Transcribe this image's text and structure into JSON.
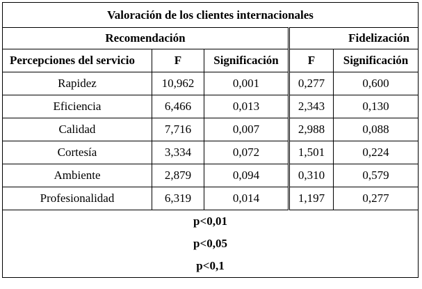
{
  "table": {
    "title": "Valoración de los clientes internacionales",
    "groups": {
      "recomendacion": "Recomendación",
      "fidelizacion": "Fidelización"
    },
    "headers": [
      "Percepciones del servicio",
      "F",
      "Significación",
      "F",
      "Significación"
    ],
    "rows": [
      [
        "Rapidez",
        "10,962",
        "0,001",
        "0,277",
        "0,600"
      ],
      [
        "Eficiencia",
        "6,466",
        "0,013",
        "2,343",
        "0,130"
      ],
      [
        "Calidad",
        "7,716",
        "0,007",
        "2,988",
        "0,088"
      ],
      [
        "Cortesía",
        "3,334",
        "0,072",
        "1,501",
        "0,224"
      ],
      [
        "Ambiente",
        "2,879",
        "0,094",
        "0,310",
        "0,579"
      ],
      [
        "Profesionalidad",
        "6,319",
        "0,014",
        "1,197",
        "0,277"
      ]
    ],
    "footnotes": [
      "p<0,01",
      "p<0,05",
      "p<0,1"
    ]
  }
}
